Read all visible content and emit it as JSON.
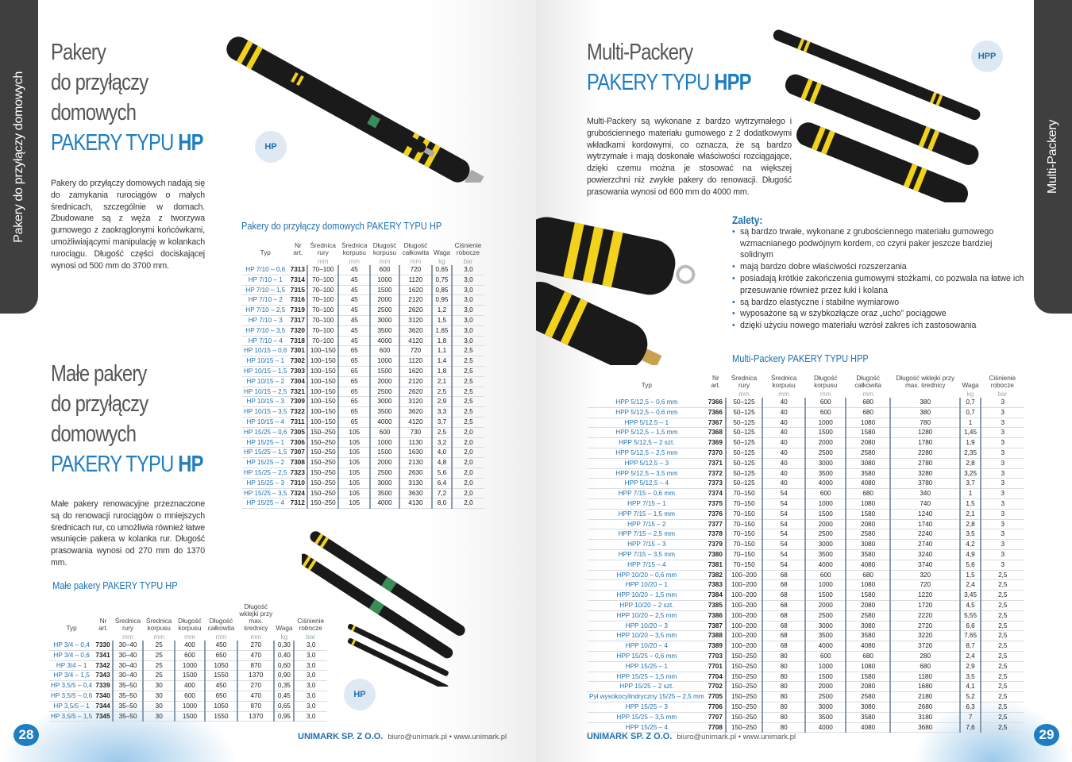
{
  "left": {
    "side_tab": "Pakery do przyłączy domowych",
    "title1": [
      "Pakery",
      "do przyłączy",
      "domowych"
    ],
    "title1_type": "PAKERY TYPU ",
    "title1_code": "HP",
    "para1": "Pakery do przyłączy domowych nadają się do zamykania rurociągów o małych średnicach, szczególnie w domach. Zbudowane są z węża z tworzywa gumowego z zaokrąglonymi końcówkami, umożliwiającymi manipulację w kolankach rurociągu. Długość części dociskającej wynosi od 500 mm do 3700 mm.",
    "title2": [
      "Małe pakery",
      "do przyłączy",
      "domowych"
    ],
    "title2_type": "PAKERY TYPU ",
    "title2_code": "HP",
    "para2": "Małe pakery renowacyjne przeznaczone są do renowacji rurociągów o mniejszych średnicach rur, co umożliwia również łatwe wsunięcie pakera w kolanka rur. Długość prasowania wynosi od 270 mm do 1370 mm.",
    "badge1": "HP",
    "badge2": "HP",
    "table1_title": "Pakery do przyłączy domowych PAKERY TYPU HP",
    "table1_headers": [
      [
        "Typ",
        ""
      ],
      [
        "Nr art.",
        ""
      ],
      [
        "Średnica rury",
        "mm"
      ],
      [
        "Średnica korpusu",
        "mm"
      ],
      [
        "Długość korpusu",
        "mm"
      ],
      [
        "Długość całkowita",
        "mm"
      ],
      [
        "Waga",
        "kg"
      ],
      [
        "Ciśnienie robocze",
        "bar"
      ]
    ],
    "table1_rows": [
      [
        "HP 7/10 – 0,6",
        "7313",
        "70–100",
        "45",
        "600",
        "720",
        "0,65",
        "3,0"
      ],
      [
        "HP 7/10 – 1",
        "7314",
        "70–100",
        "45",
        "1000",
        "1120",
        "0,75",
        "3,0"
      ],
      [
        "HP 7/10 – 1,5",
        "7315",
        "70–100",
        "45",
        "1500",
        "1620",
        "0,85",
        "3,0"
      ],
      [
        "HP 7/10 – 2",
        "7316",
        "70–100",
        "45",
        "2000",
        "2120",
        "0,95",
        "3,0"
      ],
      [
        "HP 7/10 – 2,5",
        "7319",
        "70–100",
        "45",
        "2500",
        "2620",
        "1,2",
        "3,0"
      ],
      [
        "HP 7/10 – 3",
        "7317",
        "70–100",
        "45",
        "3000",
        "3120",
        "1,5",
        "3,0"
      ],
      [
        "HP 7/10 – 3,5",
        "7320",
        "70–100",
        "45",
        "3500",
        "3620",
        "1,65",
        "3,0"
      ],
      [
        "HP 7/10 – 4",
        "7318",
        "70–100",
        "45",
        "4000",
        "4120",
        "1,8",
        "3,0"
      ],
      [
        "HP 10/15 – 0,6",
        "7301",
        "100–150",
        "65",
        "600",
        "720",
        "1,1",
        "2,5"
      ],
      [
        "HP 10/15 – 1",
        "7302",
        "100–150",
        "65",
        "1000",
        "1120",
        "1,4",
        "2,5"
      ],
      [
        "HP 10/15 – 1,5",
        "7303",
        "100–150",
        "65",
        "1500",
        "1620",
        "1,8",
        "2,5"
      ],
      [
        "HP 10/15 – 2",
        "7304",
        "100–150",
        "65",
        "2000",
        "2120",
        "2,1",
        "2,5"
      ],
      [
        "HP 10/15 – 2,5",
        "7321",
        "100–150",
        "65",
        "2500",
        "2620",
        "2,5",
        "2,5"
      ],
      [
        "HP 10/15 – 3",
        "7309",
        "100–150",
        "65",
        "3000",
        "3120",
        "2,9",
        "2,5"
      ],
      [
        "HP 10/15 – 3,5",
        "7322",
        "100–150",
        "65",
        "3500",
        "3620",
        "3,3",
        "2,5"
      ],
      [
        "HP 10/15 – 4",
        "7311",
        "100–150",
        "65",
        "4000",
        "4120",
        "3,7",
        "2,5"
      ],
      [
        "HP 15/25 – 0,6",
        "7305",
        "150–250",
        "105",
        "600",
        "730",
        "2,5",
        "2,0"
      ],
      [
        "HP 15/25 – 1",
        "7306",
        "150–250",
        "105",
        "1000",
        "1130",
        "3,2",
        "2,0"
      ],
      [
        "HP 15/25 – 1,5",
        "7307",
        "150–250",
        "105",
        "1500",
        "1630",
        "4,0",
        "2,0"
      ],
      [
        "HP 15/25 – 2",
        "7308",
        "150–250",
        "105",
        "2000",
        "2130",
        "4,8",
        "2,0"
      ],
      [
        "HP 15/25 – 2,5",
        "7323",
        "150–250",
        "105",
        "2500",
        "2630",
        "5,6",
        "2,0"
      ],
      [
        "HP 15/25 – 3",
        "7310",
        "150–250",
        "105",
        "3000",
        "3130",
        "6,4",
        "2,0"
      ],
      [
        "HP 15/25 – 3,5",
        "7324",
        "150–250",
        "105",
        "3500",
        "3630",
        "7,2",
        "2,0"
      ],
      [
        "HP 15/25 – 4",
        "7312",
        "150–250",
        "105",
        "4000",
        "4130",
        "8,0",
        "2,0"
      ]
    ],
    "table2_title": "Małe pakery PAKERY TYPU HP",
    "table2_headers": [
      [
        "Typ",
        ""
      ],
      [
        "Nr art.",
        ""
      ],
      [
        "Średnica rury",
        "mm"
      ],
      [
        "Średnica korpusu",
        "mm"
      ],
      [
        "Długość korpusu",
        "mm"
      ],
      [
        "Długość całkowita",
        "mm"
      ],
      [
        "Długość wklejki przy max. średnicy",
        "mm"
      ],
      [
        "Waga",
        "kg"
      ],
      [
        "Ciśnienie robocze",
        "bar"
      ]
    ],
    "table2_rows": [
      [
        "HP 3/4 – 0,4",
        "7330",
        "30–40",
        "25",
        "400",
        "450",
        "270",
        "0,30",
        "3,0"
      ],
      [
        "HP 3/4 – 0,6",
        "7341",
        "30–40",
        "25",
        "600",
        "650",
        "470",
        "0,40",
        "3,0"
      ],
      [
        "HP 3/4 – 1",
        "7342",
        "30–40",
        "25",
        "1000",
        "1050",
        "870",
        "0,60",
        "3,0"
      ],
      [
        "HP 3/4 – 1,5",
        "7343",
        "30–40",
        "25",
        "1500",
        "1550",
        "1370",
        "0,90",
        "3,0"
      ],
      [
        "HP 3,5/5 – 0,4",
        "7339",
        "35–50",
        "30",
        "400",
        "450",
        "270",
        "0,35",
        "3,0"
      ],
      [
        "HP 3,5/5 – 0,6",
        "7340",
        "35–50",
        "30",
        "600",
        "650",
        "470",
        "0,45",
        "3,0"
      ],
      [
        "HP 3,5/5 – 1",
        "7344",
        "35–50",
        "30",
        "1000",
        "1050",
        "870",
        "0,65",
        "3,0"
      ],
      [
        "HP 3,5/5 – 1,5",
        "7345",
        "35–50",
        "30",
        "1500",
        "1550",
        "1370",
        "0,95",
        "3,0"
      ]
    ],
    "footer_company": "UNIMARK SP. Z O.O.",
    "footer_contact": "biuro@unimark.pl • www.unimark.pl",
    "page_number": "28"
  },
  "right": {
    "side_tab": "Multi-Packery",
    "title_line1": "Multi-Packery",
    "title_type": "PAKERY TYPU ",
    "title_code": "HPP",
    "badge": "HPP",
    "para": "Multi-Packery są wykonane z bardzo wytrzymałego i grubościennego materiału gumowego z 2 dodatkowymi wkładkami kordowymi, co oznacza, że są bardzo wytrzymałe i mają doskonałe właściwości rozciągające, dzięki czemu można je stosować na większej powierzchni niż zwykłe pakery do renowacji. Długość prasowania wynosi od 600 mm do 4000 mm.",
    "advantages_title": "Zalety:",
    "advantages": [
      "są bardzo trwałe, wykonane z grubościennego materiału gumowego wzmacnianego podwójnym kordem, co czyni paker jeszcze bardziej solidnym",
      "mają bardzo dobre właściwości rozszerzania",
      "posiadają krótkie zakończenia gumowymi stożkami, co pozwala na łatwe ich przesuwanie również przez łuki i kolana",
      "są bardzo elastyczne i stabilne wymiarowo",
      "wyposażone są w szybkozłącze oraz „ucho” pociągowe",
      "dzięki użyciu nowego materiału wzrósł zakres ich zastosowania"
    ],
    "table_title": "Multi-Packery PAKERY TYPU HPP",
    "table_headers": [
      [
        "Typ",
        ""
      ],
      [
        "Nr art.",
        ""
      ],
      [
        "Średnica rury",
        "mm"
      ],
      [
        "Średnica korpusu",
        "mm"
      ],
      [
        "Długość korpusu",
        "mm"
      ],
      [
        "Długość całkowita",
        "mm"
      ],
      [
        "Długość wklejki przy max. średnicy",
        ""
      ],
      [
        "Waga",
        "kg"
      ],
      [
        "Ciśnienie robocze",
        "bar"
      ]
    ],
    "table_rows": [
      [
        "HPP 5/12,5 – 0,6 mm",
        "7366",
        "50–125",
        "40",
        "600",
        "680",
        "380",
        "0,7",
        "3"
      ],
      [
        "HPP 5/12,5 – 0,6 mm",
        "7366",
        "50–125",
        "40",
        "600",
        "680",
        "380",
        "0,7",
        "3"
      ],
      [
        "HPP 5/12,5 – 1",
        "7367",
        "50–125",
        "40",
        "1000",
        "1080",
        "780",
        "1",
        "3"
      ],
      [
        "HPP 5/12,5 – 1,5 mm",
        "7368",
        "50–125",
        "40",
        "1500",
        "1580",
        "1280",
        "1,45",
        "3"
      ],
      [
        "HPP 5/12,5 – 2 szt.",
        "7369",
        "50–125",
        "40",
        "2000",
        "2080",
        "1780",
        "1,9",
        "3"
      ],
      [
        "HPP 5/12,5 – 2,5 mm",
        "7370",
        "50–125",
        "40",
        "2500",
        "2580",
        "2280",
        "2,35",
        "3"
      ],
      [
        "HPP 5/12,5 – 3",
        "7371",
        "50–125",
        "40",
        "3000",
        "3080",
        "2780",
        "2,8",
        "3"
      ],
      [
        "HPP 5/12,5 – 3,5 mm",
        "7372",
        "50–125",
        "40",
        "3500",
        "3580",
        "3280",
        "3,25",
        "3"
      ],
      [
        "HPP 5/12,5 – 4",
        "7373",
        "50–125",
        "40",
        "4000",
        "4080",
        "3780",
        "3,7",
        "3"
      ],
      [
        "HPP 7/15 – 0,6 mm",
        "7374",
        "70–150",
        "54",
        "600",
        "680",
        "340",
        "1",
        "3"
      ],
      [
        "HPP 7/15 – 1",
        "7375",
        "70–150",
        "54",
        "1000",
        "1080",
        "740",
        "1,5",
        "3"
      ],
      [
        "HPP 7/15 – 1,5 mm",
        "7376",
        "70–150",
        "54",
        "1500",
        "1580",
        "1240",
        "2,1",
        "3"
      ],
      [
        "HPP 7/15 – 2",
        "7377",
        "70–150",
        "54",
        "2000",
        "2080",
        "1740",
        "2,8",
        "3"
      ],
      [
        "HPP 7/15 – 2,5 mm",
        "7378",
        "70–150",
        "54",
        "2500",
        "2580",
        "2240",
        "3,5",
        "3"
      ],
      [
        "HPP 7/15 – 3",
        "7379",
        "70–150",
        "54",
        "3000",
        "3080",
        "2740",
        "4,2",
        "3"
      ],
      [
        "HPP 7/15 – 3,5 mm",
        "7380",
        "70–150",
        "54",
        "3500",
        "3580",
        "3240",
        "4,9",
        "3"
      ],
      [
        "HPP 7/15 – 4",
        "7381",
        "70–150",
        "54",
        "4000",
        "4080",
        "3740",
        "5,6",
        "3"
      ],
      [
        "HPP 10/20 – 0,6 mm",
        "7382",
        "100–200",
        "68",
        "600",
        "680",
        "320",
        "1,5",
        "2,5"
      ],
      [
        "HPP 10/20 – 1",
        "7383",
        "100–200",
        "68",
        "1000",
        "1080",
        "720",
        "2,4",
        "2,5"
      ],
      [
        "HPP 10/20 – 1,5 mm",
        "7384",
        "100–200",
        "68",
        "1500",
        "1580",
        "1220",
        "3,45",
        "2,5"
      ],
      [
        "HPP 10/20 – 2 szt.",
        "7385",
        "100–200",
        "68",
        "2000",
        "2080",
        "1720",
        "4,5",
        "2,5"
      ],
      [
        "HPP 10/20 – 2,5 mm",
        "7386",
        "100–200",
        "68",
        "2500",
        "2580",
        "2220",
        "5,55",
        "2,5"
      ],
      [
        "HPP 10/20 – 3",
        "7387",
        "100–200",
        "68",
        "3000",
        "3080",
        "2720",
        "6,6",
        "2,5"
      ],
      [
        "HPP 10/20 – 3,5 mm",
        "7388",
        "100–200",
        "68",
        "3500",
        "3580",
        "3220",
        "7,65",
        "2,5"
      ],
      [
        "HPP 10/20 – 4",
        "7389",
        "100–200",
        "68",
        "4000",
        "4080",
        "3720",
        "8,7",
        "2,5"
      ],
      [
        "HPP 15/25 – 0,6 mm",
        "7703",
        "150–250",
        "80",
        "600",
        "680",
        "280",
        "2,4",
        "2,5"
      ],
      [
        "HPP 15/25 – 1",
        "7701",
        "150–250",
        "80",
        "1000",
        "1080",
        "680",
        "2,9",
        "2,5"
      ],
      [
        "HPP 15/25 – 1,5 mm",
        "7704",
        "150–250",
        "80",
        "1500",
        "1580",
        "1180",
        "3,5",
        "2,5"
      ],
      [
        "HPP 15/25 – 2 szt.",
        "7702",
        "150–250",
        "80",
        "2000",
        "2080",
        "1680",
        "4,1",
        "2,5"
      ],
      [
        "Pył wysokocylindryczny 15/25 – 2,5 mm",
        "7705",
        "150–250",
        "80",
        "2500",
        "2580",
        "2180",
        "5,2",
        "2,5"
      ],
      [
        "HPP 15/25 – 3",
        "7706",
        "150–250",
        "80",
        "3000",
        "3080",
        "2680",
        "6,3",
        "2,5"
      ],
      [
        "HPP 15/25 – 3,5 mm",
        "7707",
        "150–250",
        "80",
        "3500",
        "3580",
        "3180",
        "7",
        "2,5"
      ],
      [
        "HPP 15/25 – 4",
        "7708",
        "150–250",
        "80",
        "4000",
        "4080",
        "3680",
        "7,6",
        "2,5"
      ]
    ],
    "footer_company": "UNIMARK SP. Z O.O.",
    "footer_contact": "biuro@unimark.pl • www.unimark.pl",
    "page_number": "29"
  },
  "colors": {
    "accent": "#1f7dc0",
    "title_gray": "#555555",
    "tab": "#3f3f3f",
    "packer_black": "#1a1a1a",
    "packer_stripe": "#f2d21a",
    "packer_green": "#3c8c5a"
  }
}
